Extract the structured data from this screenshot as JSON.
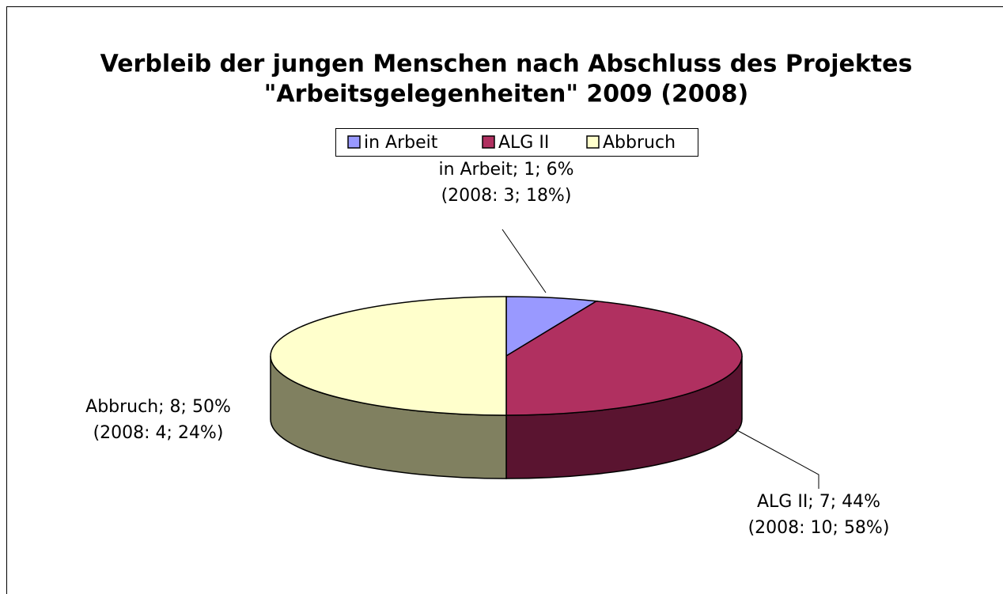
{
  "chart_data": {
    "type": "pie",
    "title": [
      "Verbleib der jungen Menschen nach Abschluss des Projektes",
      "\"Arbeitsgelegenheiten\" 2009 (2008)"
    ],
    "categories": [
      "in Arbeit",
      "ALG II",
      "Abbruch"
    ],
    "values": [
      1,
      7,
      8
    ],
    "value_labels": [
      "in Arbeit; 1; 6%",
      "ALG II; 7; 44%",
      "Abbruch; 8; 50%"
    ],
    "value_labels_2008": [
      "(2008: 3; 18%)",
      "(2008: 10; 58%)",
      "(2008: 4; 24%)"
    ],
    "colors": [
      "#9999ff",
      "#b03060",
      "#ffffcc"
    ],
    "side_colors": [
      "#5a5a99",
      "#5a1430",
      "#808060"
    ],
    "legend": "top"
  }
}
